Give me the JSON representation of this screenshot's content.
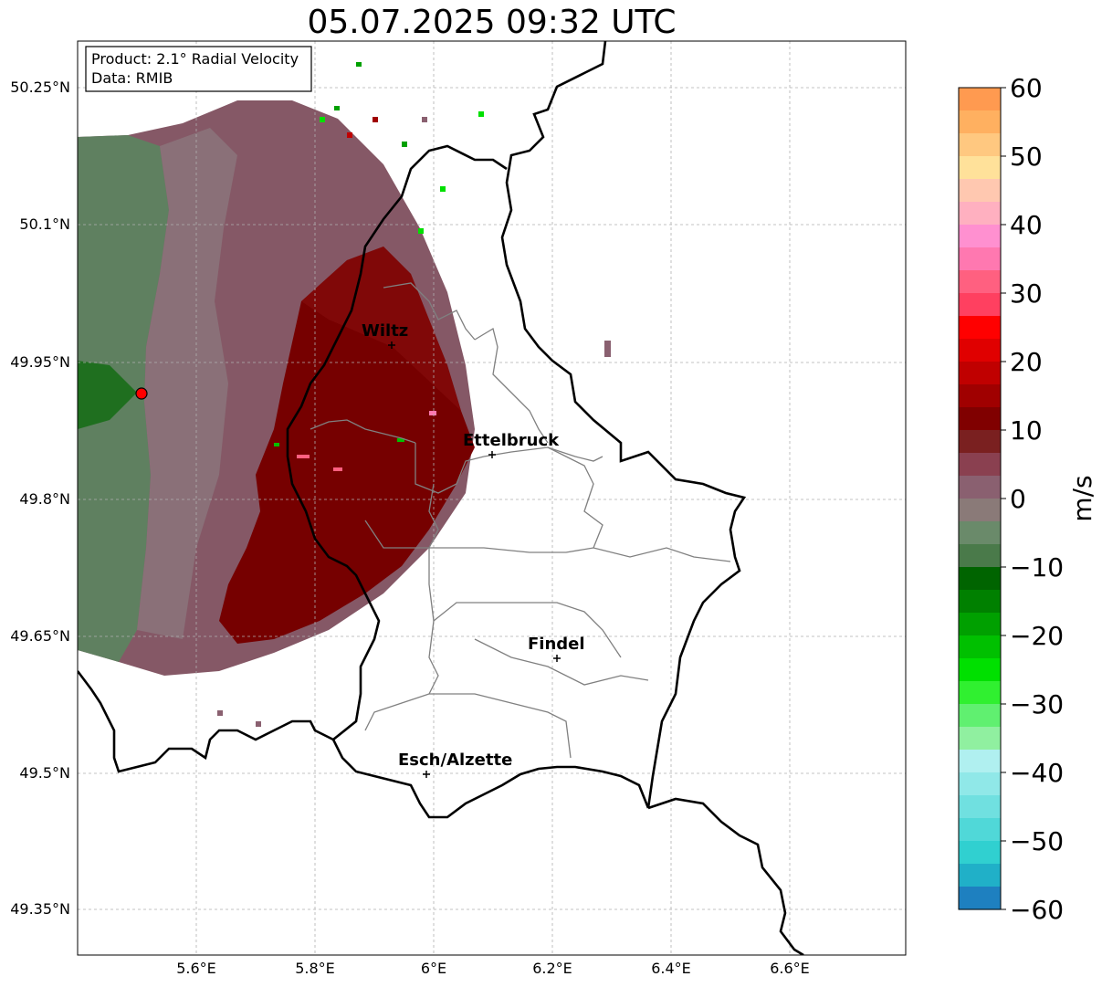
{
  "title": "05.07.2025 09:32 UTC",
  "info_box": {
    "product": "Product: 2.1° Radial Velocity",
    "data": "Data: RMIB"
  },
  "map": {
    "lon_ticks": [
      "5.6°E",
      "5.8°E",
      "6°E",
      "6.2°E",
      "6.4°E",
      "6.6°E"
    ],
    "lat_ticks": [
      "50.25°N",
      "50.1°N",
      "49.95°N",
      "49.8°N",
      "49.65°N",
      "49.5°N",
      "49.35°N"
    ],
    "cities": [
      {
        "name": "Wiltz"
      },
      {
        "name": "Ettelbruck"
      },
      {
        "name": "Findel"
      },
      {
        "name": "Esch/Alzette"
      }
    ]
  },
  "colorbar": {
    "unit": "m/s",
    "ticks": [
      "60",
      "50",
      "40",
      "30",
      "20",
      "10",
      "0",
      "−10",
      "−20",
      "−30",
      "−40",
      "−50",
      "−60"
    ],
    "range": [
      -60,
      60
    ],
    "colors": [
      "#ff9a50",
      "#ffb060",
      "#ffc880",
      "#ffe19a",
      "#ffc8b0",
      "#ffb0c0",
      "#ff90d0",
      "#ff78b0",
      "#ff6080",
      "#ff4060",
      "#ff0000",
      "#e00000",
      "#c00000",
      "#a00000",
      "#800000",
      "#7a2020",
      "#8a4050",
      "#8a6070",
      "#8a7a78",
      "#6a8a6a",
      "#4a7a4a",
      "#006400",
      "#008000",
      "#00a000",
      "#00c000",
      "#00e000",
      "#30f030",
      "#60f070",
      "#90f0a0",
      "#b0f0f0",
      "#90e8e8",
      "#70e0e0",
      "#50d8d8",
      "#30d0d0",
      "#20b0c8",
      "#1e80c0"
    ]
  }
}
